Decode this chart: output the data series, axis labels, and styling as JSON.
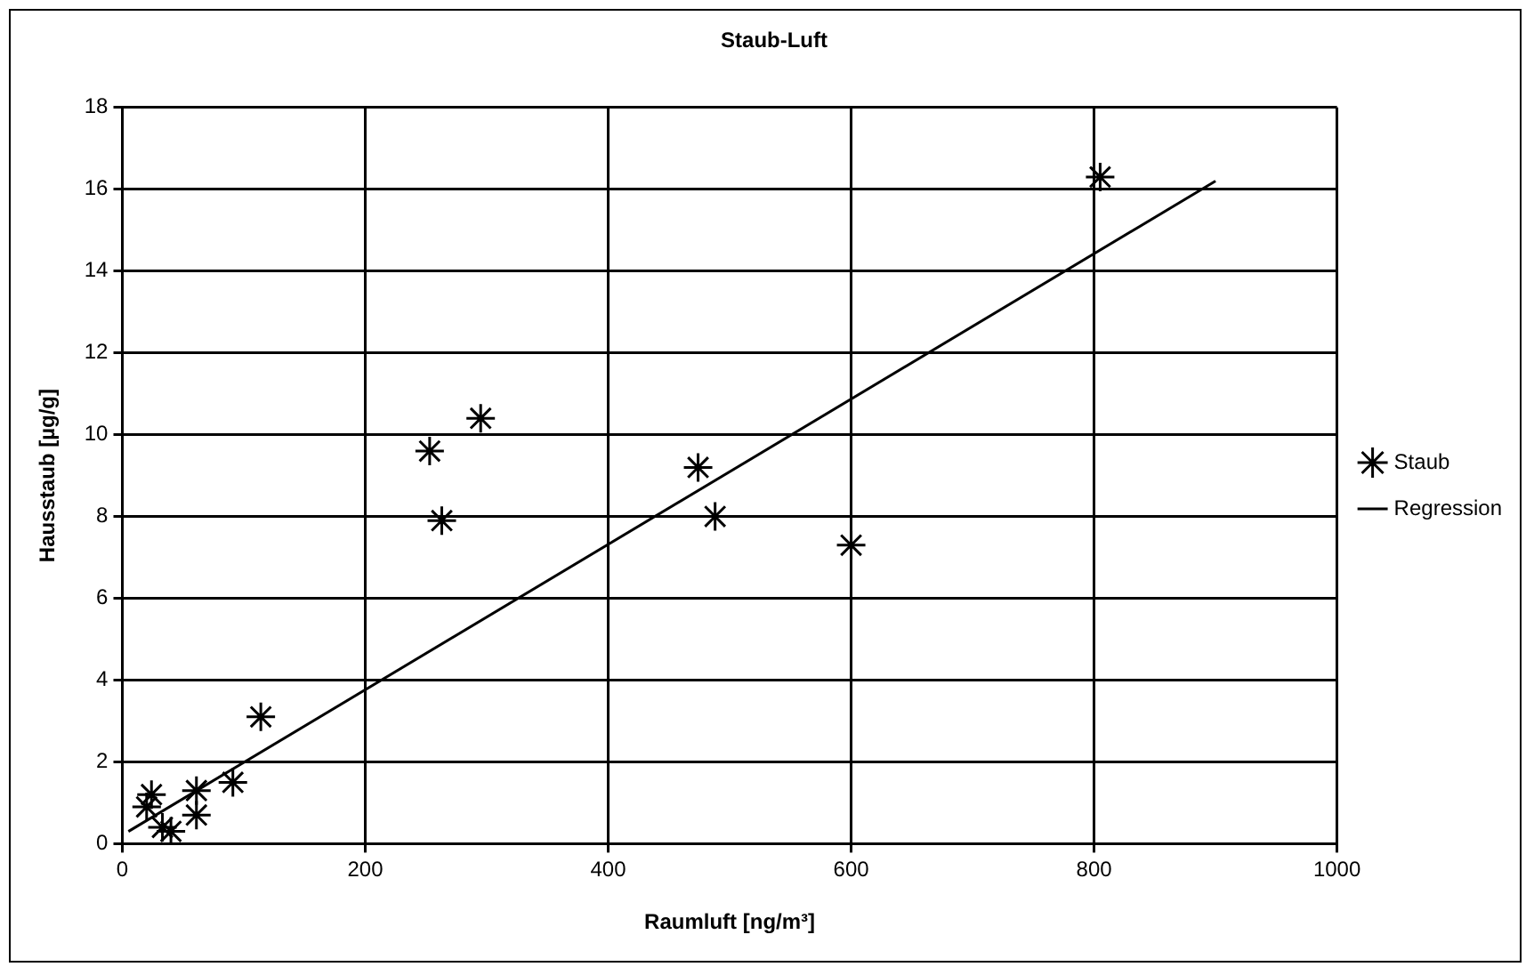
{
  "chart_data": {
    "type": "scatter",
    "title": "Staub-Luft",
    "xlabel": "Raumluft [ng/m³]",
    "ylabel": "Hausstaub [µg/g]",
    "xlim": [
      0,
      1000
    ],
    "xticks": [
      0,
      200,
      400,
      600,
      800,
      1000
    ],
    "ylim": [
      0,
      18
    ],
    "yticks": [
      0,
      2,
      4,
      6,
      8,
      10,
      12,
      14,
      16,
      18
    ],
    "grid": true,
    "legend": "right",
    "marker": "cross",
    "series": [
      {
        "name": "Staub",
        "color": "#000000",
        "x": [
          20,
          24,
          33,
          40,
          61,
          61,
          91,
          114,
          253,
          263,
          295,
          474,
          488,
          600,
          805
        ],
        "values": [
          0.9,
          1.2,
          0.4,
          0.3,
          1.3,
          0.7,
          1.5,
          3.1,
          9.6,
          7.9,
          10.4,
          9.2,
          8.0,
          7.3,
          16.3
        ]
      },
      {
        "name": "Regression",
        "color": "#000000",
        "type": "line",
        "marker": "none",
        "line_style": "solid",
        "x": [
          5,
          900
        ],
        "values": [
          0.3,
          16.2
        ]
      }
    ]
  }
}
